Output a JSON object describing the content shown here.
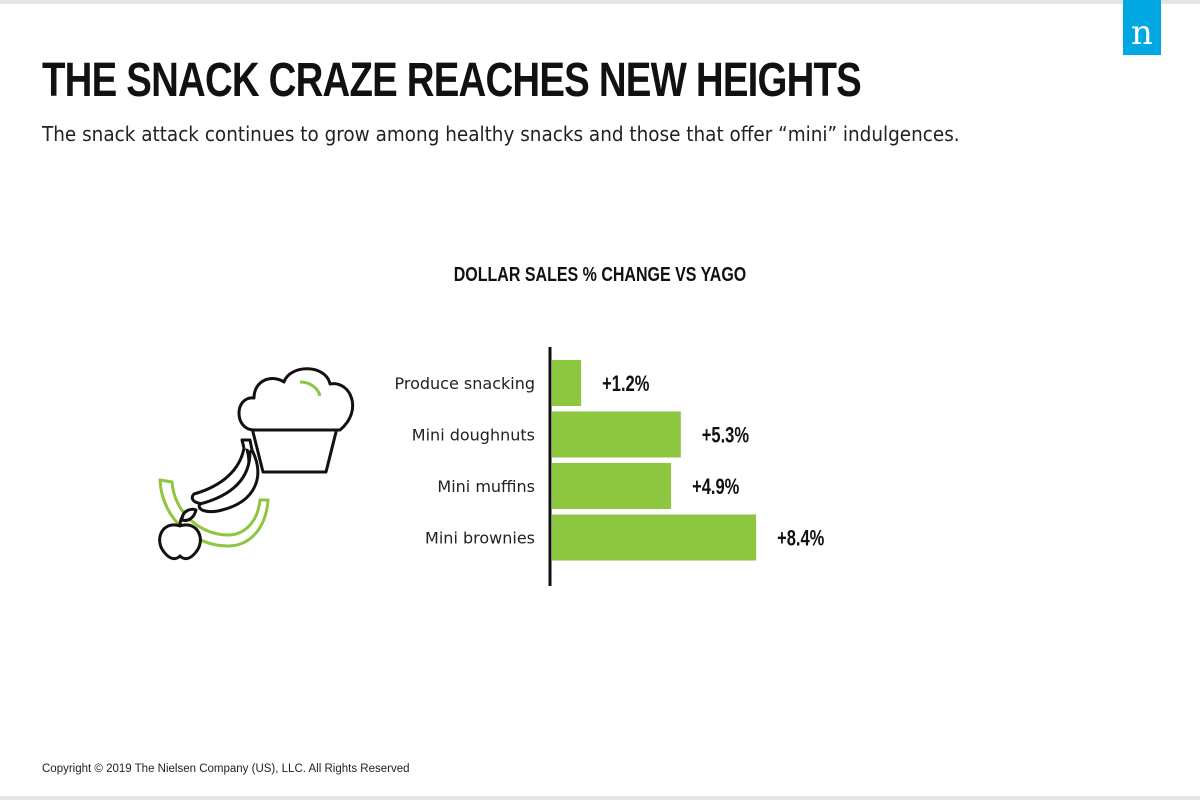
{
  "brand": {
    "logo_letter": "n",
    "logo_color": "#00a8e1",
    "icon": "nielsen-logo-icon"
  },
  "header": {
    "title": "THE SNACK CRAZE REACHES NEW HEIGHTS",
    "subtitle": "The snack attack continues to grow among healthy snacks and those that offer “mini” indulgences."
  },
  "illustration": {
    "icons": [
      "muffin-icon",
      "banana-icon",
      "watermelon-slice-icon",
      "apple-icon"
    ],
    "accent": "#8dc63f"
  },
  "chart_data": {
    "type": "bar",
    "orientation": "horizontal",
    "title": "DOLLAR SALES % CHANGE VS YAGO",
    "categories": [
      "Produce snacking",
      "Mini doughnuts",
      "Mini muffins",
      "Mini brownies"
    ],
    "values": [
      1.2,
      5.3,
      4.9,
      8.4
    ],
    "data_labels": [
      "+1.2%",
      "+5.3%",
      "+4.9%",
      "+8.4%"
    ],
    "unit": "%",
    "xlim": [
      0,
      8.4
    ],
    "bar_color": "#8dc63f",
    "grid": false,
    "legend": "none"
  },
  "footer": {
    "copyright": "Copyright © 2019 The Nielsen Company (US), LLC. All Rights Reserved"
  }
}
